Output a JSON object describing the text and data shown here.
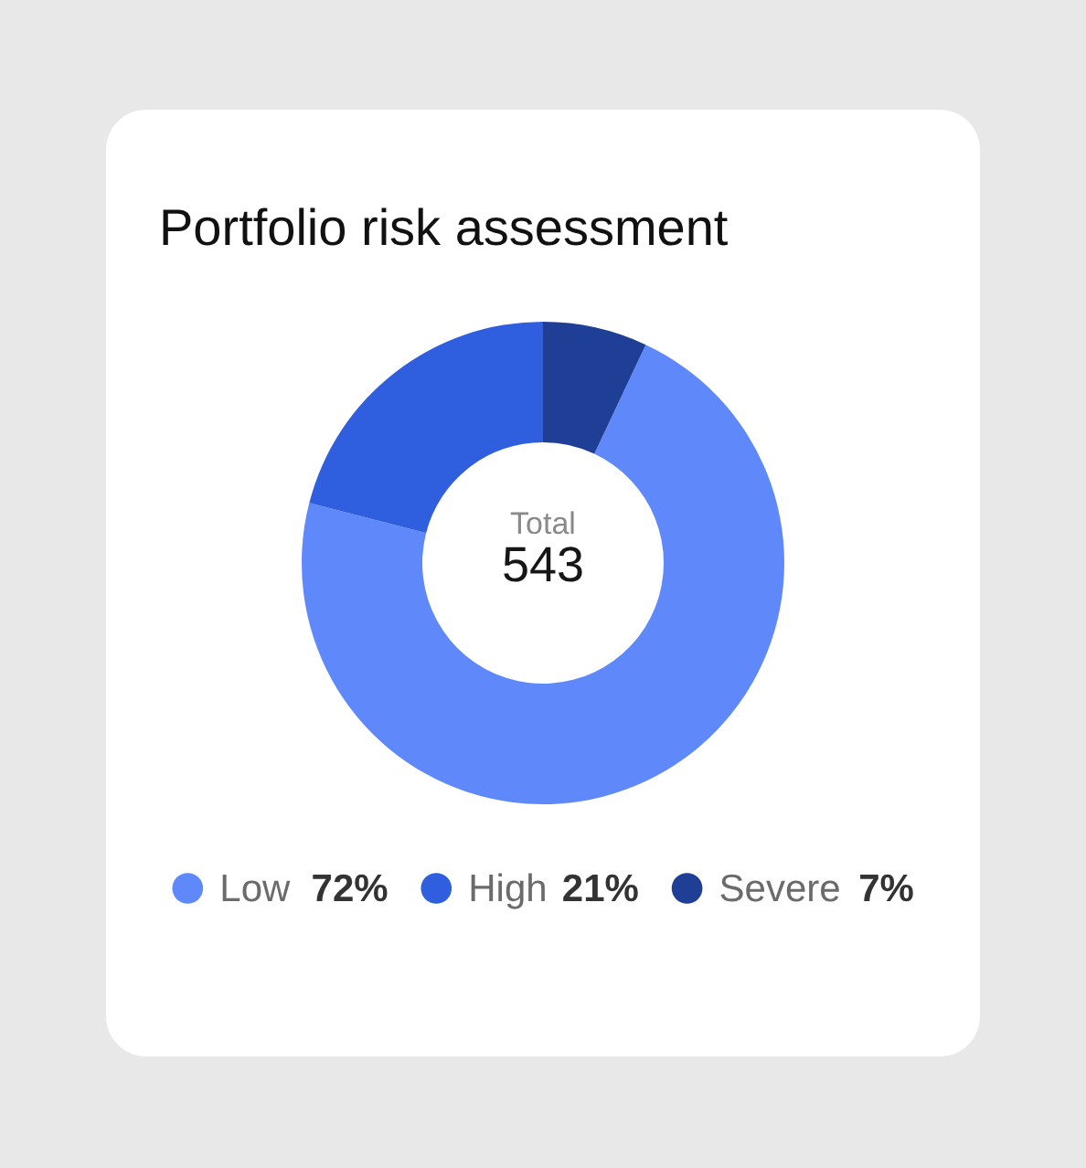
{
  "chart_data": {
    "type": "donut",
    "title": "Portfolio risk assessment",
    "categories": [
      "Low",
      "High",
      "Severe"
    ],
    "values": [
      72,
      21,
      7
    ],
    "colors": [
      "#5f89fb",
      "#2f5fdf",
      "#1f3f96"
    ],
    "value_labels": [
      "72%",
      "21%",
      "7%"
    ],
    "annotations": [
      "Total",
      "543"
    ],
    "legend": "bottom"
  }
}
